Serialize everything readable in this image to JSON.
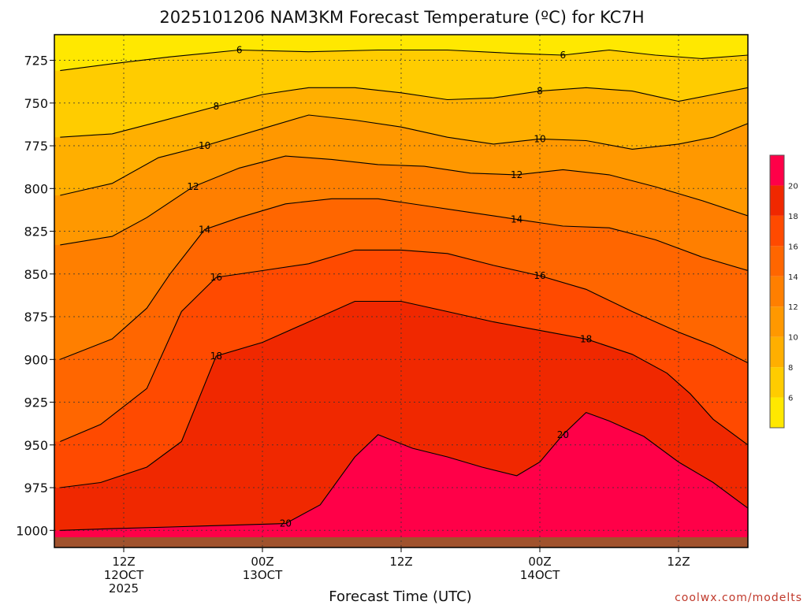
{
  "chart_data": {
    "type": "heatmap",
    "title": "2025101206 NAM3KM Forecast Temperature (ºC) for KC7H",
    "xlabel": "Forecast Time (UTC)",
    "ylabel": "",
    "credit": "coolwx.com/modelts",
    "y_axis": {
      "units": "hPa",
      "inverted": true,
      "range": [
        710,
        1010
      ],
      "ticks": [
        725,
        750,
        775,
        800,
        825,
        850,
        875,
        900,
        925,
        950,
        975,
        1000
      ]
    },
    "x_axis": {
      "range_hours": [
        0,
        60
      ],
      "ticks": [
        {
          "hour": 6,
          "label": "12Z",
          "label2": "12OCT",
          "label3": "2025"
        },
        {
          "hour": 18,
          "label": "00Z",
          "label2": "13OCT",
          "label3": ""
        },
        {
          "hour": 30,
          "label": "12Z",
          "label2": "",
          "label3": ""
        },
        {
          "hour": 42,
          "label": "00Z",
          "label2": "14OCT",
          "label3": ""
        },
        {
          "hour": 54,
          "label": "12Z",
          "label2": "",
          "label3": ""
        }
      ]
    },
    "grid": true,
    "colorbar": {
      "position": "right",
      "levels": [
        4,
        6,
        8,
        10,
        12,
        14,
        16,
        18,
        20,
        22
      ],
      "tick_labels": [
        "6",
        "8",
        "10",
        "12",
        "14",
        "16",
        "18",
        "20"
      ],
      "colors": [
        "#FFE800",
        "#FFCC00",
        "#FFAF00",
        "#FF9800",
        "#FF7F00",
        "#FF6600",
        "#FF4A00",
        "#F02800",
        "#FF0048"
      ]
    },
    "isotherms_c": [
      {
        "value": 6,
        "points": [
          [
            0.5,
            731
          ],
          [
            5,
            727
          ],
          [
            10,
            723
          ],
          [
            16,
            719
          ],
          [
            22,
            720
          ],
          [
            28,
            719
          ],
          [
            34,
            719
          ],
          [
            40,
            721
          ],
          [
            44,
            722
          ],
          [
            48,
            719
          ],
          [
            52,
            722
          ],
          [
            56,
            724
          ],
          [
            60,
            722
          ]
        ]
      },
      {
        "value": 8,
        "points": [
          [
            0.5,
            770
          ],
          [
            5,
            768
          ],
          [
            9,
            761
          ],
          [
            14,
            752
          ],
          [
            18,
            745
          ],
          [
            22,
            741
          ],
          [
            26,
            741
          ],
          [
            30,
            744
          ],
          [
            34,
            748
          ],
          [
            38,
            747
          ],
          [
            42,
            743
          ],
          [
            46,
            741
          ],
          [
            50,
            743
          ],
          [
            54,
            749
          ],
          [
            57,
            745
          ],
          [
            60,
            741
          ]
        ]
      },
      {
        "value": 10,
        "points": [
          [
            0.5,
            804
          ],
          [
            5,
            797
          ],
          [
            9,
            782
          ],
          [
            13,
            775
          ],
          [
            18,
            765
          ],
          [
            22,
            757
          ],
          [
            26,
            760
          ],
          [
            30,
            764
          ],
          [
            34,
            770
          ],
          [
            38,
            774
          ],
          [
            42,
            771
          ],
          [
            46,
            772
          ],
          [
            50,
            777
          ],
          [
            54,
            774
          ],
          [
            57,
            770
          ],
          [
            60,
            762
          ]
        ]
      },
      {
        "value": 12,
        "points": [
          [
            0.5,
            833
          ],
          [
            5,
            828
          ],
          [
            8,
            817
          ],
          [
            12,
            799
          ],
          [
            16,
            788
          ],
          [
            20,
            781
          ],
          [
            24,
            783
          ],
          [
            28,
            786
          ],
          [
            32,
            787
          ],
          [
            36,
            791
          ],
          [
            40,
            792
          ],
          [
            44,
            789
          ],
          [
            48,
            792
          ],
          [
            52,
            799
          ],
          [
            56,
            807
          ],
          [
            60,
            816
          ]
        ]
      },
      {
        "value": 14,
        "points": [
          [
            0.5,
            900
          ],
          [
            5,
            888
          ],
          [
            8,
            870
          ],
          [
            10,
            850
          ],
          [
            13,
            824
          ],
          [
            16,
            817
          ],
          [
            20,
            809
          ],
          [
            24,
            806
          ],
          [
            28,
            806
          ],
          [
            32,
            810
          ],
          [
            36,
            814
          ],
          [
            40,
            818
          ],
          [
            44,
            822
          ],
          [
            48,
            823
          ],
          [
            52,
            830
          ],
          [
            56,
            840
          ],
          [
            60,
            848
          ]
        ]
      },
      {
        "value": 16,
        "points": [
          [
            0.5,
            948
          ],
          [
            4,
            938
          ],
          [
            8,
            917
          ],
          [
            11,
            872
          ],
          [
            14,
            852
          ],
          [
            18,
            848
          ],
          [
            22,
            844
          ],
          [
            26,
            836
          ],
          [
            30,
            836
          ],
          [
            34,
            838
          ],
          [
            38,
            845
          ],
          [
            42,
            851
          ],
          [
            46,
            859
          ],
          [
            50,
            872
          ],
          [
            54,
            884
          ],
          [
            57,
            892
          ],
          [
            60,
            902
          ]
        ]
      },
      {
        "value": 18,
        "points": [
          [
            0.5,
            975
          ],
          [
            4,
            972
          ],
          [
            8,
            963
          ],
          [
            11,
            948
          ],
          [
            14,
            898
          ],
          [
            18,
            890
          ],
          [
            22,
            878
          ],
          [
            26,
            866
          ],
          [
            30,
            866
          ],
          [
            34,
            872
          ],
          [
            38,
            878
          ],
          [
            42,
            883
          ],
          [
            46,
            888
          ],
          [
            50,
            897
          ],
          [
            53,
            908
          ],
          [
            55,
            920
          ],
          [
            57,
            935
          ],
          [
            60,
            950
          ]
        ]
      },
      {
        "value": 20,
        "points": [
          [
            0.5,
            1000
          ],
          [
            5,
            999
          ],
          [
            10,
            998
          ],
          [
            15,
            997
          ],
          [
            20,
            996
          ],
          [
            23,
            985
          ],
          [
            26,
            957
          ],
          [
            28,
            944
          ],
          [
            31,
            952
          ],
          [
            34,
            957
          ],
          [
            37,
            963
          ],
          [
            40,
            968
          ],
          [
            42,
            960
          ],
          [
            44,
            944
          ],
          [
            46,
            931
          ],
          [
            48,
            936
          ],
          [
            51,
            945
          ],
          [
            54,
            960
          ],
          [
            57,
            972
          ],
          [
            60,
            987
          ]
        ]
      }
    ],
    "terrain": {
      "label": "surface",
      "pressure_hpa": 1004
    }
  }
}
